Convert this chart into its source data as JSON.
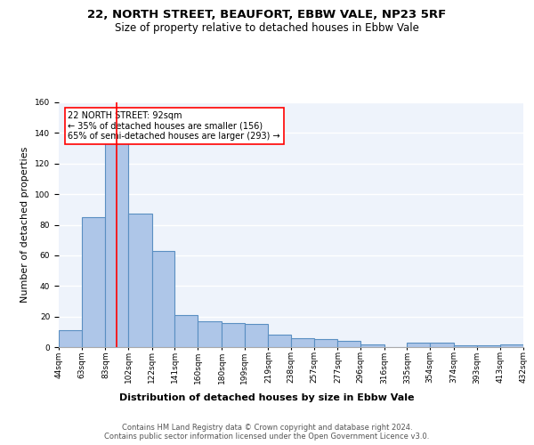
{
  "title": "22, NORTH STREET, BEAUFORT, EBBW VALE, NP23 5RF",
  "subtitle": "Size of property relative to detached houses in Ebbw Vale",
  "xlabel": "Distribution of detached houses by size in Ebbw Vale",
  "ylabel": "Number of detached properties",
  "bar_values": [
    11,
    85,
    136,
    87,
    63,
    21,
    17,
    16,
    15,
    8,
    6,
    5,
    4,
    2,
    0,
    3,
    3,
    1,
    1,
    2
  ],
  "x_labels": [
    "44sqm",
    "63sqm",
    "83sqm",
    "102sqm",
    "122sqm",
    "141sqm",
    "160sqm",
    "180sqm",
    "199sqm",
    "219sqm",
    "238sqm",
    "257sqm",
    "277sqm",
    "296sqm",
    "316sqm",
    "335sqm",
    "354sqm",
    "374sqm",
    "393sqm",
    "413sqm",
    "432sqm"
  ],
  "bar_color": "#aec6e8",
  "bar_edge_color": "#5a8fc2",
  "bar_edge_width": 0.8,
  "red_line_x": 92,
  "bin_edges": [
    44,
    63,
    83,
    102,
    122,
    141,
    160,
    180,
    199,
    219,
    238,
    257,
    277,
    296,
    316,
    335,
    354,
    374,
    393,
    413,
    432
  ],
  "ylim": [
    0,
    160
  ],
  "yticks": [
    0,
    20,
    40,
    60,
    80,
    100,
    120,
    140,
    160
  ],
  "annotation_text": "22 NORTH STREET: 92sqm\n← 35% of detached houses are smaller (156)\n65% of semi-detached houses are larger (293) →",
  "annotation_box_color": "white",
  "annotation_box_edge_color": "red",
  "background_color": "#eef3fb",
  "grid_color": "white",
  "footer_text": "Contains HM Land Registry data © Crown copyright and database right 2024.\nContains public sector information licensed under the Open Government Licence v3.0.",
  "title_fontsize": 9.5,
  "subtitle_fontsize": 8.5,
  "ylabel_fontsize": 8,
  "xlabel_fontsize": 8,
  "annotation_fontsize": 7,
  "tick_fontsize": 6.5,
  "footer_fontsize": 6
}
